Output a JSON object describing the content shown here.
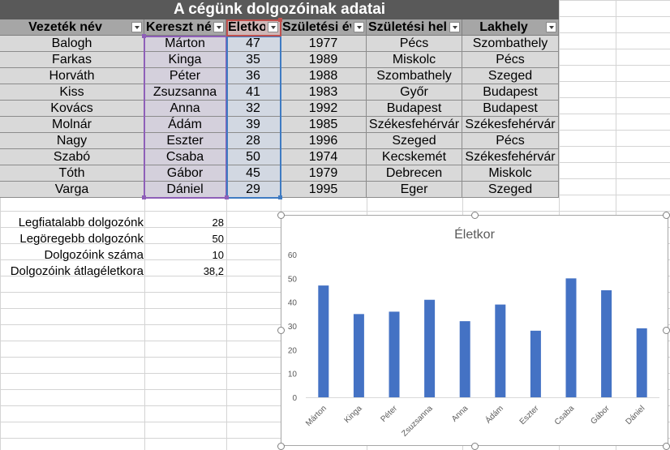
{
  "title": "A cégünk dolgozóinak adatai",
  "headers": [
    "Vezeték név",
    "Kereszt név",
    "Életkor",
    "Születési év",
    "Születési hely",
    "Lakhely"
  ],
  "rows": [
    [
      "Balogh",
      "Márton",
      "47",
      "1977",
      "Pécs",
      "Szombathely"
    ],
    [
      "Farkas",
      "Kinga",
      "35",
      "1989",
      "Miskolc",
      "Pécs"
    ],
    [
      "Horváth",
      "Péter",
      "36",
      "1988",
      "Szombathely",
      "Szeged"
    ],
    [
      "Kiss",
      "Zsuzsanna",
      "41",
      "1983",
      "Győr",
      "Budapest"
    ],
    [
      "Kovács",
      "Anna",
      "32",
      "1992",
      "Budapest",
      "Budapest"
    ],
    [
      "Molnár",
      "Ádám",
      "39",
      "1985",
      "Székesfehérvár",
      "Székesfehérvár"
    ],
    [
      "Nagy",
      "Eszter",
      "28",
      "1996",
      "Szeged",
      "Pécs"
    ],
    [
      "Szabó",
      "Csaba",
      "50",
      "1974",
      "Kecskemét",
      "Székesfehérvár"
    ],
    [
      "Tóth",
      "Gábor",
      "45",
      "1979",
      "Debrecen",
      "Miskolc"
    ],
    [
      "Varga",
      "Dániel",
      "29",
      "1995",
      "Eger",
      "Szeged"
    ]
  ],
  "stats": [
    {
      "label": "Legfiatalabb dolgozónk",
      "value": "28"
    },
    {
      "label": "Legöregebb dolgozónk",
      "value": "50"
    },
    {
      "label": "Dolgozóink száma",
      "value": "10"
    },
    {
      "label": "Dolgozóink átlagéletkora",
      "value": "38,2"
    }
  ],
  "colors": {
    "title_bg": "#595959",
    "header_bg": "#a6a6a6",
    "cell_bg": "#d9d9d9",
    "bar": "#4472c4",
    "selection_purple": "#8e5fb8",
    "selection_blue": "#3f7bc2",
    "selection_red": "#c0504d"
  },
  "chart_data": {
    "type": "bar",
    "title": "Életkor",
    "categories": [
      "Márton",
      "Kinga",
      "Péter",
      "Zsuzsanna",
      "Anna",
      "Ádám",
      "Eszter",
      "Csaba",
      "Gábor",
      "Dániel"
    ],
    "values": [
      47,
      35,
      36,
      41,
      32,
      39,
      28,
      50,
      45,
      29
    ],
    "ylim": [
      0,
      60
    ],
    "yticks": [
      "0",
      "10",
      "20",
      "30",
      "40",
      "50",
      "60"
    ],
    "grid": false,
    "legend": "none"
  }
}
